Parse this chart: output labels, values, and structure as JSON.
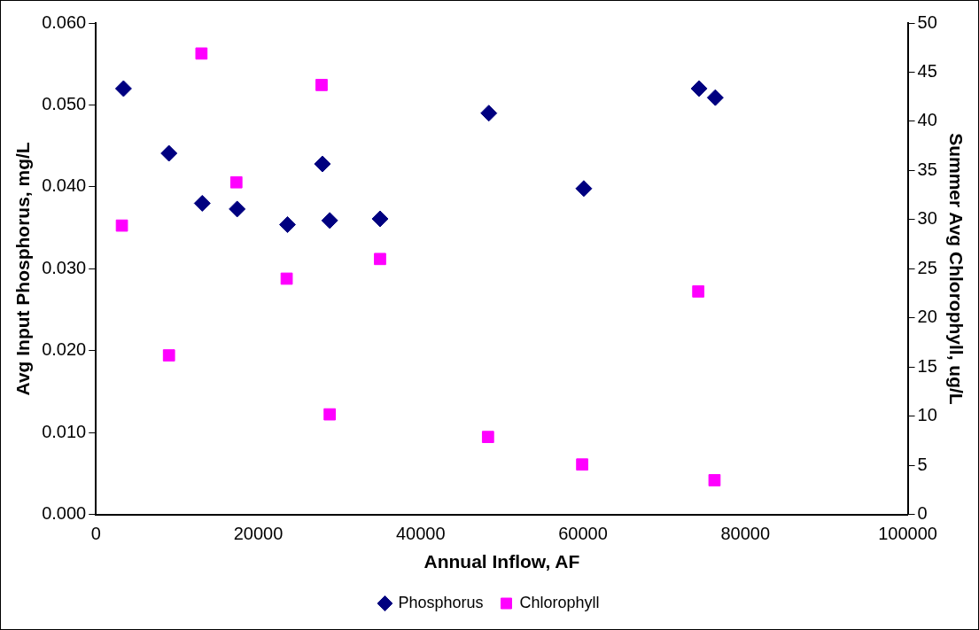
{
  "chart_data": {
    "type": "scatter",
    "xlabel": "Annual Inflow, AF",
    "ylabel": "Avg Input Phosphorus, mg/L",
    "y2label": "Summer Avg Chlorophyll, ug/L",
    "xlim": [
      0,
      100000
    ],
    "xticks": [
      0,
      20000,
      40000,
      60000,
      80000,
      100000
    ],
    "ylim": [
      0,
      0.06
    ],
    "yticks": [
      {
        "value": 0,
        "label": "0.000"
      },
      {
        "value": 0.01,
        "label": "0.010"
      },
      {
        "value": 0.02,
        "label": "0.020"
      },
      {
        "value": 0.03,
        "label": "0.030"
      },
      {
        "value": 0.04,
        "label": "0.040"
      },
      {
        "value": 0.05,
        "label": "0.050"
      },
      {
        "value": 0.06,
        "label": "0.060"
      }
    ],
    "y2lim": [
      0,
      50
    ],
    "y2ticks": [
      0,
      5,
      10,
      15,
      20,
      25,
      30,
      35,
      40,
      45,
      50
    ],
    "grid": false,
    "legend": "bottom",
    "series": [
      {
        "name": "Phosphorus",
        "color": "#000080",
        "marker": "diamond",
        "x": [
          3400,
          9000,
          13100,
          17400,
          23600,
          27900,
          28800,
          35000,
          48400,
          60100,
          74300,
          76300
        ],
        "values": [
          0.052,
          0.0441,
          0.038,
          0.0373,
          0.0354,
          0.0428,
          0.0359,
          0.0361,
          0.049,
          0.0398,
          0.052,
          0.0509
        ]
      },
      {
        "name": "Chlorophyll",
        "color": "#ff00ff",
        "marker": "square",
        "axis": "y2",
        "x": [
          3200,
          9000,
          13000,
          17300,
          23500,
          27800,
          28800,
          35000,
          48300,
          59900,
          74200,
          76200
        ],
        "values": [
          29.4,
          16.2,
          46.9,
          33.8,
          24.0,
          43.7,
          10.2,
          26.0,
          7.9,
          5.1,
          22.7,
          3.5
        ]
      }
    ]
  }
}
